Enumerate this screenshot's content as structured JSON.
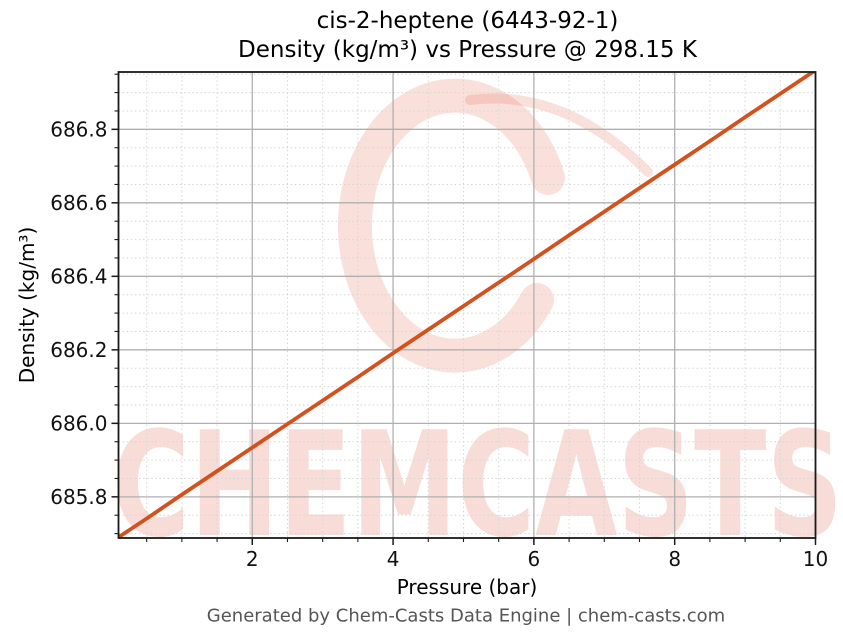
{
  "title": {
    "line1": "cis-2-heptene (6443-92-1)",
    "line2": "Density (kg/m³) vs Pressure @ 298.15 K"
  },
  "footer": {
    "text": "Generated by Chem-Casts Data Engine | chem-casts.com"
  },
  "watermark": {
    "text": "CHEMCASTS",
    "logo": "brush-ring-logo"
  },
  "colors": {
    "line": "#d3511d",
    "watermark_text": "rgba(222,80,58,0.20)",
    "watermark_logo": "rgba(228,98,74,0.20)",
    "major_grid": "#b0b0b0",
    "minor_grid": "#d6d6d6",
    "spine": "#1a1a1a",
    "tick": "#1a1a1a",
    "tick_label": "#111111",
    "footer_text": "#555555"
  },
  "chart_data": {
    "type": "line",
    "title": "cis-2-heptene (6443-92-1) Density (kg/m³) vs Pressure @ 298.15 K",
    "xlabel": "Pressure (bar)",
    "ylabel": "Density (kg/m³)",
    "xlim": [
      0.1,
      10
    ],
    "ylim": [
      685.688,
      686.956
    ],
    "x_ticks": [
      2,
      4,
      6,
      8,
      10
    ],
    "y_ticks": [
      685.8,
      686.0,
      686.2,
      686.4,
      686.6,
      686.8
    ],
    "x_minor_step": 0.5,
    "y_minor_step": 0.05,
    "grid": {
      "major": true,
      "minor": true
    },
    "legend": null,
    "series": [
      {
        "name": "Density @ 298.15 K",
        "color": "#d3511d",
        "x": [
          0.1,
          0.5,
          1.0,
          1.5,
          2.0,
          2.5,
          3.0,
          3.5,
          4.0,
          4.5,
          5.0,
          5.5,
          6.0,
          6.5,
          7.0,
          7.5,
          8.0,
          8.5,
          9.0,
          9.5,
          10.0
        ],
        "y": [
          685.69,
          685.741,
          685.806,
          685.87,
          685.934,
          685.998,
          686.062,
          686.126,
          686.191,
          686.255,
          686.319,
          686.383,
          686.447,
          686.512,
          686.576,
          686.64,
          686.704,
          686.768,
          686.833,
          686.897,
          686.961
        ]
      }
    ]
  }
}
